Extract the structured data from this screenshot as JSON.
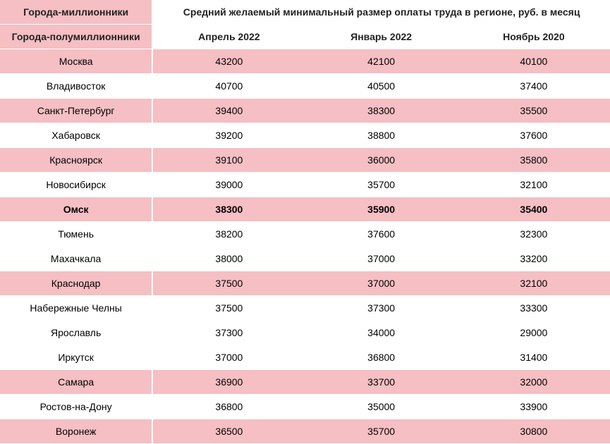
{
  "table": {
    "header1_left": "Города-миллионники",
    "header1_right": "Средний желаемый минимальный размер оплаты труда в регионе, руб. в месяц",
    "header2_left": "Города-полумиллионники",
    "columns": [
      "Апрель 2022",
      "Январь 2022",
      "Ноябрь 2020"
    ],
    "rows": [
      {
        "city": "Москва",
        "values": [
          "43200",
          "42100",
          "40100"
        ],
        "style": "pink"
      },
      {
        "city": "Владивосток",
        "values": [
          "40700",
          "40500",
          "37400"
        ],
        "style": "white"
      },
      {
        "city": "Санкт-Петербург",
        "values": [
          "39400",
          "38300",
          "35500"
        ],
        "style": "pink"
      },
      {
        "city": "Хабаровск",
        "values": [
          "39200",
          "38800",
          "37600"
        ],
        "style": "white"
      },
      {
        "city": "Красноярск",
        "values": [
          "39100",
          "36000",
          "35800"
        ],
        "style": "pink"
      },
      {
        "city": "Новосибирск",
        "values": [
          "39000",
          "35700",
          "32100"
        ],
        "style": "white"
      },
      {
        "city": "Омск",
        "values": [
          "38300",
          "35900",
          "35400"
        ],
        "style": "highlight"
      },
      {
        "city": "Тюмень",
        "values": [
          "38200",
          "37600",
          "32300"
        ],
        "style": "white"
      },
      {
        "city": "Махачкала",
        "values": [
          "38000",
          "37000",
          "33200"
        ],
        "style": "white"
      },
      {
        "city": "Краснодар",
        "values": [
          "37500",
          "37000",
          "32100"
        ],
        "style": "pink"
      },
      {
        "city": "Набережные Челны",
        "values": [
          "37500",
          "37300",
          "33300"
        ],
        "style": "white"
      },
      {
        "city": "Ярославль",
        "values": [
          "37300",
          "34000",
          "29000"
        ],
        "style": "white"
      },
      {
        "city": "Иркутск",
        "values": [
          "37000",
          "36800",
          "31400"
        ],
        "style": "white"
      },
      {
        "city": "Самара",
        "values": [
          "36900",
          "33700",
          "32000"
        ],
        "style": "pink"
      },
      {
        "city": "Ростов-на-Дону",
        "values": [
          "36800",
          "35000",
          "33900"
        ],
        "style": "white"
      },
      {
        "city": "Воронеж",
        "values": [
          "36500",
          "35700",
          "30800"
        ],
        "style": "pink"
      }
    ],
    "colors": {
      "pink": "#f5bfc3",
      "white": "#ffffff",
      "text": "#222222"
    }
  }
}
